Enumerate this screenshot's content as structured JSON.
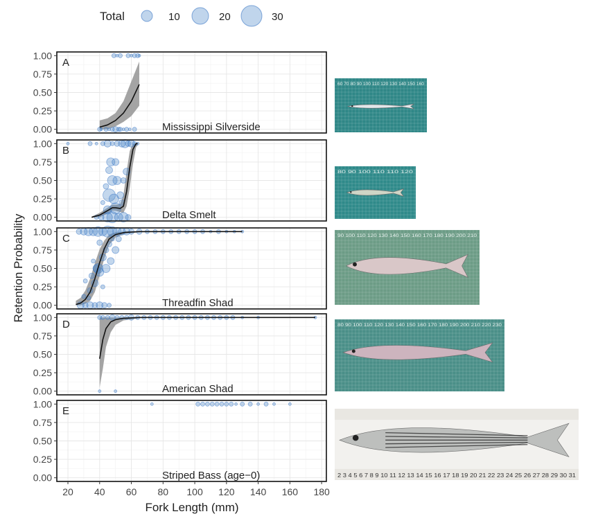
{
  "legend": {
    "title": "Total",
    "entries": [
      {
        "label": "10",
        "value": 10
      },
      {
        "label": "20",
        "value": 20
      },
      {
        "label": "30",
        "value": 30
      }
    ]
  },
  "colors": {
    "point_fill": "#4a86c8",
    "point_stroke": "#3a76c4",
    "ribbon": "#9a9a9a",
    "curve": "#111111",
    "grid": "#e6e6e6",
    "panel_border": "#111111"
  },
  "chart_data": {
    "type": "scatter",
    "xlabel": "Fork Length (mm)",
    "ylabel": "Retention Probability",
    "xlim": [
      13,
      183
    ],
    "ylim": [
      -0.05,
      1.05
    ],
    "x_ticks": [
      20,
      40,
      60,
      80,
      100,
      120,
      140,
      160,
      180
    ],
    "y_ticks": [
      "0.00",
      "0.25",
      "0.50",
      "0.75",
      "1.00"
    ],
    "grid": true,
    "legend_position": "top",
    "panels": [
      {
        "letter": "A",
        "species": "Mississippi Silverside",
        "fit": [
          [
            40,
            0.03
          ],
          [
            45,
            0.06
          ],
          [
            50,
            0.12
          ],
          [
            55,
            0.22
          ],
          [
            60,
            0.38
          ],
          [
            65,
            0.61
          ]
        ],
        "ci_upper": [
          [
            40,
            0.12
          ],
          [
            45,
            0.15
          ],
          [
            50,
            0.22
          ],
          [
            55,
            0.38
          ],
          [
            60,
            0.65
          ],
          [
            65,
            0.92
          ]
        ],
        "ci_lower": [
          [
            40,
            0.0
          ],
          [
            45,
            0.0
          ],
          [
            50,
            0.04
          ],
          [
            55,
            0.1
          ],
          [
            60,
            0.18
          ],
          [
            65,
            0.32
          ]
        ],
        "points": [
          [
            40,
            0,
            3
          ],
          [
            41,
            0,
            2
          ],
          [
            44,
            0,
            3
          ],
          [
            46,
            0,
            2
          ],
          [
            48,
            0,
            3
          ],
          [
            50,
            0,
            4
          ],
          [
            52,
            0,
            3
          ],
          [
            53,
            0,
            3
          ],
          [
            55,
            0,
            2
          ],
          [
            57,
            0,
            3
          ],
          [
            59,
            0,
            2
          ],
          [
            62,
            0,
            3
          ],
          [
            49,
            1,
            3
          ],
          [
            51,
            1,
            2
          ],
          [
            53,
            1,
            3
          ],
          [
            58,
            1,
            3
          ],
          [
            60,
            1,
            2
          ],
          [
            62,
            1,
            3
          ],
          [
            64,
            1,
            3
          ],
          [
            65,
            1,
            2
          ]
        ]
      },
      {
        "letter": "B",
        "species": "Delta Smelt",
        "fit": [
          [
            35,
            0.0
          ],
          [
            40,
            0.03
          ],
          [
            45,
            0.09
          ],
          [
            48,
            0.13
          ],
          [
            50,
            0.13
          ],
          [
            53,
            0.12
          ],
          [
            55,
            0.15
          ],
          [
            57,
            0.35
          ],
          [
            59,
            0.68
          ],
          [
            61,
            0.92
          ],
          [
            63,
            1.0
          ],
          [
            64,
            1.0
          ]
        ],
        "ci_upper": [
          [
            35,
            0.01
          ],
          [
            40,
            0.06
          ],
          [
            45,
            0.13
          ],
          [
            48,
            0.17
          ],
          [
            50,
            0.17
          ],
          [
            53,
            0.18
          ],
          [
            55,
            0.3
          ],
          [
            57,
            0.62
          ],
          [
            59,
            0.9
          ],
          [
            61,
            1.0
          ],
          [
            64,
            1.0
          ]
        ],
        "ci_lower": [
          [
            35,
            0.0
          ],
          [
            40,
            0.0
          ],
          [
            45,
            0.05
          ],
          [
            48,
            0.09
          ],
          [
            50,
            0.09
          ],
          [
            53,
            0.07
          ],
          [
            55,
            0.06
          ],
          [
            57,
            0.15
          ],
          [
            59,
            0.4
          ],
          [
            61,
            0.72
          ],
          [
            63,
            0.95
          ],
          [
            64,
            0.98
          ]
        ],
        "points": [
          [
            20,
            1,
            2
          ],
          [
            34,
            1,
            3
          ],
          [
            38,
            1,
            2
          ],
          [
            42,
            1,
            3
          ],
          [
            45,
            1,
            5
          ],
          [
            48,
            1,
            3
          ],
          [
            51,
            1,
            4
          ],
          [
            54,
            1,
            5
          ],
          [
            56,
            1,
            6
          ],
          [
            58,
            1,
            4
          ],
          [
            60,
            1,
            5
          ],
          [
            62,
            1,
            3
          ],
          [
            64,
            1,
            2
          ],
          [
            47,
            0.75,
            6
          ],
          [
            50,
            0.75,
            5
          ],
          [
            46,
            0.64,
            5
          ],
          [
            48,
            0.5,
            7
          ],
          [
            51,
            0.5,
            6
          ],
          [
            44,
            0.42,
            4
          ],
          [
            46,
            0.3,
            9
          ],
          [
            49,
            0.25,
            7
          ],
          [
            53,
            0.3,
            5
          ],
          [
            50,
            0.12,
            8
          ],
          [
            45,
            0.1,
            6
          ],
          [
            48,
            0,
            8
          ],
          [
            45,
            0,
            7
          ],
          [
            52,
            0,
            6
          ],
          [
            55,
            0,
            7
          ],
          [
            41,
            0,
            4
          ],
          [
            38,
            0,
            3
          ],
          [
            58,
            0,
            4
          ],
          [
            54,
            0.2,
            4
          ],
          [
            57,
            0.62,
            5
          ],
          [
            42,
            0.2,
            3
          ],
          [
            55,
            0.5,
            4
          ]
        ]
      },
      {
        "letter": "C",
        "species": "Threadfin Shad",
        "fit": [
          [
            25,
            0.01
          ],
          [
            28,
            0.03
          ],
          [
            31,
            0.08
          ],
          [
            34,
            0.18
          ],
          [
            37,
            0.36
          ],
          [
            40,
            0.58
          ],
          [
            43,
            0.77
          ],
          [
            46,
            0.9
          ],
          [
            50,
            0.96
          ],
          [
            56,
            0.99
          ],
          [
            65,
            1.0
          ],
          [
            100,
            1.0
          ],
          [
            130,
            1.0
          ]
        ],
        "ci_upper": [
          [
            25,
            0.06
          ],
          [
            28,
            0.1
          ],
          [
            31,
            0.2
          ],
          [
            34,
            0.36
          ],
          [
            37,
            0.57
          ],
          [
            40,
            0.76
          ],
          [
            43,
            0.88
          ],
          [
            46,
            0.96
          ],
          [
            50,
            0.99
          ],
          [
            56,
            1.0
          ],
          [
            65,
            1.0
          ],
          [
            130,
            1.0
          ]
        ],
        "ci_lower": [
          [
            25,
            0.0
          ],
          [
            28,
            0.0
          ],
          [
            31,
            0.02
          ],
          [
            34,
            0.06
          ],
          [
            37,
            0.18
          ],
          [
            40,
            0.4
          ],
          [
            43,
            0.64
          ],
          [
            46,
            0.82
          ],
          [
            50,
            0.92
          ],
          [
            56,
            0.97
          ],
          [
            65,
            0.99
          ],
          [
            130,
            1.0
          ]
        ],
        "points": [
          [
            27,
            1,
            4
          ],
          [
            30,
            1,
            5
          ],
          [
            33,
            1,
            6
          ],
          [
            36,
            1,
            6
          ],
          [
            39,
            1,
            7
          ],
          [
            42,
            1,
            6
          ],
          [
            45,
            1,
            8
          ],
          [
            48,
            1,
            7
          ],
          [
            51,
            1,
            6
          ],
          [
            54,
            1,
            5
          ],
          [
            57,
            1,
            5
          ],
          [
            60,
            1,
            4
          ],
          [
            65,
            1,
            4
          ],
          [
            70,
            1,
            3
          ],
          [
            75,
            1,
            3
          ],
          [
            80,
            1,
            3
          ],
          [
            85,
            1,
            3
          ],
          [
            90,
            1,
            3
          ],
          [
            95,
            1,
            3
          ],
          [
            100,
            1,
            3
          ],
          [
            105,
            1,
            3
          ],
          [
            110,
            1,
            2
          ],
          [
            115,
            1,
            3
          ],
          [
            120,
            1,
            2
          ],
          [
            125,
            1,
            2
          ],
          [
            130,
            1,
            2
          ],
          [
            28,
            0,
            5
          ],
          [
            31,
            0,
            4
          ],
          [
            34,
            0,
            5
          ],
          [
            37,
            0,
            4
          ],
          [
            40,
            0,
            5
          ],
          [
            43,
            0,
            4
          ],
          [
            46,
            0,
            3
          ],
          [
            30,
            0.12,
            3
          ],
          [
            34,
            0.2,
            4
          ],
          [
            37,
            0.3,
            5
          ],
          [
            40,
            0.45,
            6
          ],
          [
            38,
            0.5,
            5
          ],
          [
            42,
            0.65,
            5
          ],
          [
            36,
            0.6,
            3
          ],
          [
            44,
            0.75,
            4
          ],
          [
            46,
            0.83,
            4
          ],
          [
            40,
            0.85,
            4
          ],
          [
            48,
            0.9,
            3
          ],
          [
            35,
            0.4,
            4
          ],
          [
            33,
            0.1,
            3
          ],
          [
            39,
            0.5,
            7
          ],
          [
            44,
            0.5,
            6
          ],
          [
            47,
            0.6,
            5
          ],
          [
            42,
            0.25,
            3
          ],
          [
            50,
            0.75,
            5
          ],
          [
            52,
            0.9,
            4
          ],
          [
            31,
            0.33,
            3
          ]
        ]
      },
      {
        "letter": "D",
        "species": "American Shad",
        "fit": [
          [
            40,
            0.44
          ],
          [
            42,
            0.7
          ],
          [
            44,
            0.85
          ],
          [
            47,
            0.94
          ],
          [
            50,
            0.97
          ],
          [
            55,
            0.99
          ],
          [
            65,
            1.0
          ],
          [
            100,
            1.0
          ],
          [
            176,
            1.0
          ]
        ],
        "ci_upper": [
          [
            40,
            1.0
          ],
          [
            43,
            1.0
          ],
          [
            176,
            1.0
          ]
        ],
        "ci_lower": [
          [
            40,
            0.05
          ],
          [
            42,
            0.3
          ],
          [
            44,
            0.6
          ],
          [
            47,
            0.8
          ],
          [
            50,
            0.9
          ],
          [
            55,
            0.96
          ],
          [
            65,
            0.99
          ],
          [
            80,
            1.0
          ],
          [
            176,
            1.0
          ]
        ],
        "points": [
          [
            40,
            1,
            3
          ],
          [
            42,
            1,
            3
          ],
          [
            45,
            1,
            3
          ],
          [
            48,
            1,
            4
          ],
          [
            51,
            1,
            3
          ],
          [
            54,
            1,
            3
          ],
          [
            57,
            1,
            3
          ],
          [
            60,
            1,
            4
          ],
          [
            64,
            1,
            3
          ],
          [
            68,
            1,
            3
          ],
          [
            72,
            1,
            3
          ],
          [
            76,
            1,
            3
          ],
          [
            80,
            1,
            3
          ],
          [
            84,
            1,
            3
          ],
          [
            88,
            1,
            3
          ],
          [
            92,
            1,
            3
          ],
          [
            96,
            1,
            3
          ],
          [
            100,
            1,
            3
          ],
          [
            104,
            1,
            3
          ],
          [
            108,
            1,
            3
          ],
          [
            112,
            1,
            3
          ],
          [
            116,
            1,
            3
          ],
          [
            120,
            1,
            3
          ],
          [
            124,
            1,
            3
          ],
          [
            130,
            1,
            2
          ],
          [
            140,
            1,
            2
          ],
          [
            176,
            1,
            2
          ],
          [
            40,
            0,
            2
          ],
          [
            50,
            0,
            2
          ]
        ]
      },
      {
        "letter": "E",
        "species": "Striped Bass (age−0)",
        "fit": [],
        "ci_upper": [],
        "ci_lower": [],
        "points": [
          [
            73,
            1,
            2
          ],
          [
            102,
            1,
            3
          ],
          [
            105,
            1,
            3
          ],
          [
            108,
            1,
            3
          ],
          [
            111,
            1,
            3
          ],
          [
            114,
            1,
            3
          ],
          [
            117,
            1,
            3
          ],
          [
            120,
            1,
            3
          ],
          [
            123,
            1,
            3
          ],
          [
            126,
            1,
            2
          ],
          [
            130,
            1,
            3
          ],
          [
            135,
            1,
            3
          ],
          [
            140,
            1,
            2
          ],
          [
            145,
            1,
            3
          ],
          [
            150,
            1,
            2
          ],
          [
            160,
            1,
            2
          ]
        ]
      }
    ]
  },
  "photos": [
    {
      "name": "silverside-photo",
      "ruler_text": "60 70 80 90 100 110 120 130 140 150 160",
      "body": "#e3e7ea",
      "bg": "#2f8787"
    },
    {
      "name": "delta-smelt-photo",
      "ruler_text": "80 90 100 110 110 120",
      "body": "#cfd5c6",
      "bg": "#2f8a8a"
    },
    {
      "name": "threadfin-shad-photo",
      "ruler_text": "90 100 110 120 130 140 150 160 170 180 190 200 210",
      "body": "#d9c7c8",
      "bg": "#6c9c86"
    },
    {
      "name": "american-shad-photo",
      "ruler_text": "80 90 100 110 120 130 140 150 160 170 180 190 200 210 220 230",
      "body": "#cdb4be",
      "bg": "#4a8f88"
    },
    {
      "name": "striped-bass-photo",
      "ruler_text": "2 3 4 5 6 7 8 9 10 11 12 13 14 15 16 17 18 19 20 21 22 23 24 25 26 27 28 29 30 31",
      "body": "#bdbfbd",
      "bg": "#f2f1ee"
    }
  ]
}
